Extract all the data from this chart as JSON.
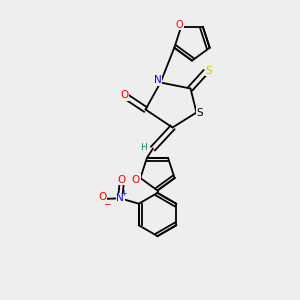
{
  "background_color": "#eeeeee",
  "bond_color": "#000000",
  "atom_colors": {
    "O": "#ff0000",
    "N": "#0000ff",
    "S_thioxo": "#cccc00",
    "S_ring": "#000000",
    "C": "#000000",
    "H": "#008080"
  },
  "figsize": [
    3.0,
    3.0
  ],
  "dpi": 100
}
